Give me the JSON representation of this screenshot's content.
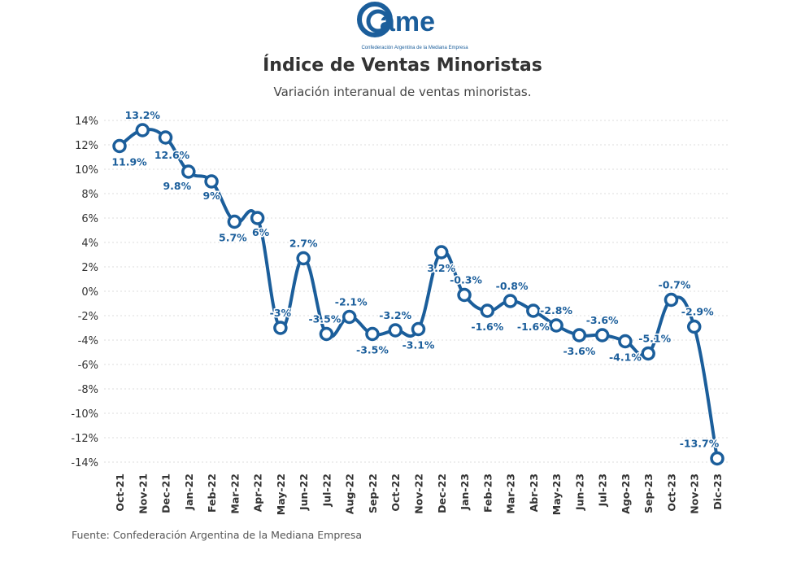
{
  "logo": {
    "text": "came",
    "tagline": "Confederación Argentina de la Mediana Empresa"
  },
  "colors": {
    "series": "#1b5e9b",
    "grid": "#dddddd",
    "text": "#333333"
  },
  "source": "Fuente: Confederación Argentina de la Mediana Empresa",
  "chart_data": {
    "type": "line",
    "title": "Índice de Ventas Minoristas",
    "subtitle": "Variación interanual de ventas minoristas.",
    "xlabel": "",
    "ylabel": "",
    "ylim": [
      -14,
      14
    ],
    "yticks": [
      14,
      12,
      10,
      8,
      6,
      4,
      2,
      0,
      -2,
      -4,
      -6,
      -8,
      -10,
      -12,
      -14
    ],
    "ytick_labels": [
      "14%",
      "12%",
      "10%",
      "8%",
      "6%",
      "4%",
      "2%",
      "0%",
      "-2%",
      "-4%",
      "-6%",
      "-8%",
      "-10%",
      "-12%",
      "-14%"
    ],
    "grid": "horizontal dotted",
    "categories": [
      "Oct-21",
      "Nov-21",
      "Dec-21",
      "Jan-22",
      "Feb-22",
      "Mar-22",
      "Apr-22",
      "May-22",
      "Jun-22",
      "Jul-22",
      "Aug-22",
      "Sep-22",
      "Oct-22",
      "Nov-22",
      "Dec-22",
      "Jan-23",
      "Feb-23",
      "Mar-23",
      "Abr-23",
      "May-23",
      "Jun-23",
      "Jul-23",
      "Ago-23",
      "Sep-23",
      "Oct-23",
      "Nov-23",
      "Dic-23"
    ],
    "values": [
      11.9,
      13.2,
      12.6,
      9.8,
      9,
      5.7,
      6,
      -3,
      2.7,
      -3.5,
      -2.1,
      -3.5,
      -3.2,
      -3.1,
      3.2,
      -0.3,
      -1.6,
      -0.8,
      -1.6,
      -2.8,
      -3.6,
      -3.6,
      -4.1,
      -5.1,
      -0.7,
      -2.9,
      -13.7
    ],
    "data_labels": [
      "11.9%",
      "13.2%",
      "12.6%",
      "9.8%",
      "9%",
      "5.7%",
      "6%",
      "-3%",
      "2.7%",
      "-3.5%",
      "-2.1%",
      "-3.5%",
      "-3.2%",
      "-3.1%",
      "3.2%",
      "-0.3%",
      "-1.6%",
      "-0.8%",
      "-1.6%",
      "-2.8%",
      "-3.6%",
      "-3.6%",
      "-4.1%",
      "-5.1%",
      "-0.7%",
      "-2.9%",
      "-13.7%"
    ]
  }
}
